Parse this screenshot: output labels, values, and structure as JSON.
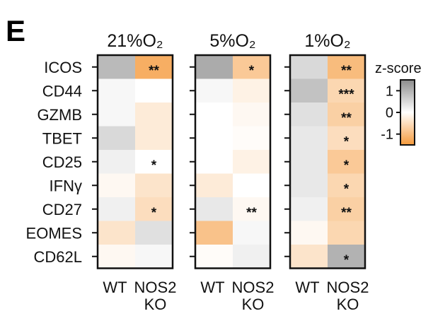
{
  "panel_label": "E",
  "chart_data": {
    "type": "heatmap",
    "rows": [
      "ICOS",
      "CD44",
      "GZMB",
      "TBET",
      "CD25",
      "IFNγ",
      "CD27",
      "EOMES",
      "CD62L"
    ],
    "panels": [
      {
        "title": "21%O₂",
        "columns": [
          "WT",
          "NOS2 KO"
        ],
        "zscores": [
          [
            0.9,
            -1.2
          ],
          [
            0.1,
            0.0
          ],
          [
            0.1,
            -0.3
          ],
          [
            0.5,
            -0.3
          ],
          [
            0.2,
            0.0
          ],
          [
            -0.1,
            -0.4
          ],
          [
            0.2,
            -0.5
          ],
          [
            -0.4,
            0.4
          ],
          [
            -0.1,
            0.1
          ]
        ],
        "significance": [
          "",
          "**",
          "",
          "",
          "",
          "",
          "",
          "",
          "",
          "*",
          "",
          "",
          "",
          "*",
          "",
          "",
          "",
          ""
        ]
      },
      {
        "title": "5%O₂",
        "columns": [
          "WT",
          "NOS2 KO"
        ],
        "zscores": [
          [
            1.1,
            -0.8
          ],
          [
            0.1,
            -0.2
          ],
          [
            0.0,
            -0.1
          ],
          [
            0.0,
            -0.05
          ],
          [
            0.0,
            -0.2
          ],
          [
            -0.3,
            0.0
          ],
          [
            0.3,
            -0.1
          ],
          [
            -0.9,
            0.1
          ],
          [
            -0.05,
            0.2
          ]
        ],
        "significance": [
          "",
          "*",
          "",
          "",
          "",
          "",
          "",
          "",
          "",
          "",
          "",
          "",
          "",
          "**",
          "",
          "",
          "",
          ""
        ]
      },
      {
        "title": "1%O₂",
        "columns": [
          "WT",
          "NOS2 KO"
        ],
        "zscores": [
          [
            0.5,
            -1.0
          ],
          [
            0.8,
            -0.6
          ],
          [
            0.4,
            -0.7
          ],
          [
            0.3,
            -0.5
          ],
          [
            0.3,
            -0.8
          ],
          [
            0.3,
            -0.6
          ],
          [
            0.2,
            -0.7
          ],
          [
            -0.1,
            -0.6
          ],
          [
            -0.4,
            1.0
          ]
        ],
        "significance": [
          "",
          "**",
          "",
          "***",
          "",
          "**",
          "",
          "*",
          "",
          "*",
          "",
          "*",
          "",
          "**",
          "",
          "",
          "",
          "*"
        ]
      }
    ],
    "column_labels": {
      "wt": "WT",
      "ko_line1": "NOS2",
      "ko_line2": "KO"
    },
    "colorbar": {
      "title": "z-score",
      "range": [
        -1.5,
        1.5
      ],
      "ticks": [
        1,
        0,
        -1
      ],
      "tick_labels": [
        "1",
        "0",
        "-1"
      ],
      "high_color": "#8c8c8c",
      "mid_color": "#ffffff",
      "low_color": "#f59a3c"
    }
  }
}
